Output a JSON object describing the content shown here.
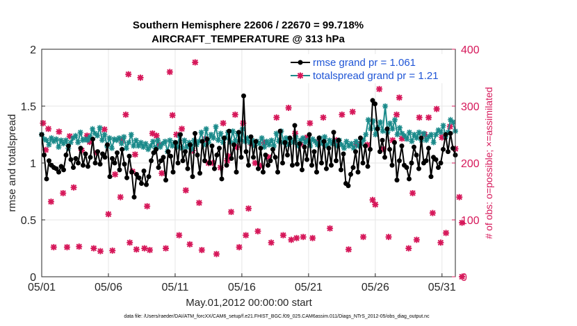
{
  "chart_data": {
    "type": "line",
    "title": "Southern Hemisphere 22606 / 22670 = 99.718%",
    "subtitle": "AIRCRAFT_TEMPERATURE @ 313 hPa",
    "xlabel": "May.01,2012 00:00:00 start",
    "ylabel": "rmse and totalspread",
    "y2label": "# of obs: o=possible; ×=assimilated",
    "footer": "data file: /Users/raeder/DAI/ATM_forcXX/CAM6_setup/f.e21.FHIST_BGC.f09_025.CAM6assim.011/Diags_NTrS_2012-05/obs_diag_output.nc",
    "x_ticks": [
      "05/01",
      "05/06",
      "05/11",
      "05/16",
      "05/21",
      "05/26",
      "05/31"
    ],
    "y_ticks": [
      "0",
      "0.5",
      "1",
      "1.5",
      "2"
    ],
    "y2_ticks": [
      "0",
      "100",
      "200",
      "300",
      "400"
    ],
    "ylim": [
      0,
      2
    ],
    "y2lim": [
      0,
      400
    ],
    "xlim_days": [
      0,
      31
    ],
    "legend_position": "top-right",
    "grid": true,
    "colors": {
      "rmse": "#000000",
      "spread": "#1a8a8a",
      "obs": "#d6185a",
      "legend_text": "#1f55d6"
    },
    "legend": [
      "rmse grand pr = 1.061",
      "totalspread grand pr = 1.21"
    ],
    "series": [
      {
        "name": "rmse",
        "values": [
          1.25,
          1.07,
          0.86,
          1.02,
          0.98,
          0.96,
          0.95,
          0.92,
          0.97,
          0.94,
          1.07,
          1.15,
          1.03,
          0.96,
          1.04,
          1.0,
          1.13,
          0.98,
          1.08,
          0.97,
          1.05,
          1.21,
          1.0,
          1.1,
          0.99,
          1.08,
          1.05,
          1.16,
          0.88,
          1.04,
          1.0,
          1.09,
          0.94,
          1.12,
          0.99,
          0.87,
          1.06,
          0.92,
          0.7,
          0.9,
          0.87,
          0.82,
          0.93,
          0.81,
          0.88,
          1.02,
          1.09,
          1.12,
          0.96,
          1.02,
          1.05,
          0.85,
          1.1,
          1.06,
          0.92,
          1.18,
          1.0,
          1.25,
          1.02,
          1.1,
          0.95,
          1.16,
          0.88,
          1.26,
          1.07,
          0.91,
          1.19,
          1.02,
          1.21,
          1.0,
          1.15,
          0.95,
          1.07,
          1.13,
          0.86,
          1.22,
          0.98,
          1.28,
          1.04,
          1.16,
          0.92,
          1.27,
          1.05,
          1.59,
          1.1,
          0.98,
          1.23,
          1.05,
          1.19,
          0.95,
          1.13,
          0.92,
          1.07,
          0.98,
          1.02,
          1.12,
          1.05,
          0.92,
          1.28,
          1.0,
          1.18,
          1.07,
          1.22,
          0.98,
          1.33,
          0.99,
          1.17,
          0.94,
          1.14,
          1.03,
          1.25,
          0.98,
          1.1,
          0.92,
          1.22,
          1.0,
          1.19,
          0.95,
          1.13,
          0.98,
          1.27,
          1.02,
          1.2,
          0.94,
          1.08,
          0.82,
          0.8,
          0.9,
          0.96,
          1.1,
          0.92,
          1.22,
          1.0,
          1.15,
          0.97,
          1.12,
          1.55,
          1.52,
          1.3,
          1.1,
          1.2,
          1.05,
          1.3,
          1.12,
          0.98,
          1.18,
          0.85,
          1.02,
          1.15,
          0.98,
          0.96,
          0.86,
          1.0,
          1.14,
          1.07,
          0.95,
          1.22,
          1.0,
          1.02,
          1.13,
          0.88,
          1.05,
          1.03,
          0.96,
          1.0,
          1.12,
          1.25,
          1.1,
          1.26,
          1.13,
          1.07
        ]
      },
      {
        "name": "totalspread",
        "values": [
          1.25,
          1.21,
          1.2,
          1.16,
          1.22,
          1.19,
          1.21,
          1.14,
          1.2,
          1.17,
          1.2,
          1.13,
          1.18,
          1.22,
          1.24,
          1.18,
          1.27,
          1.2,
          1.21,
          1.2,
          1.23,
          1.3,
          1.26,
          1.24,
          1.31,
          1.2,
          1.25,
          1.15,
          1.22,
          1.13,
          1.21,
          1.2,
          1.22,
          1.17,
          1.23,
          1.13,
          1.18,
          1.25,
          1.15,
          1.2,
          1.15,
          1.18,
          1.14,
          1.17,
          1.12,
          1.15,
          1.19,
          1.13,
          1.2,
          1.14,
          1.17,
          1.19,
          1.1,
          1.2,
          1.15,
          1.18,
          1.14,
          1.24,
          1.13,
          1.2,
          1.14,
          1.18,
          1.12,
          1.2,
          1.16,
          1.19,
          1.27,
          1.16,
          1.3,
          1.18,
          1.25,
          1.22,
          1.32,
          1.2,
          1.26,
          1.18,
          1.22,
          1.27,
          1.18,
          1.28,
          1.19,
          1.26,
          1.2,
          1.3,
          1.19,
          1.22,
          1.18,
          1.2,
          1.15,
          1.19,
          1.17,
          1.22,
          1.14,
          1.19,
          1.16,
          1.2,
          1.15,
          1.26,
          1.19,
          1.28,
          1.18,
          1.22,
          1.16,
          1.2,
          1.18,
          1.23,
          1.15,
          1.2,
          1.22,
          1.18,
          1.2,
          1.15,
          1.21,
          1.19,
          1.16,
          1.22,
          1.17,
          1.23,
          1.15,
          1.2,
          1.17,
          1.19,
          1.15,
          1.2,
          1.16,
          1.13,
          1.19,
          1.15,
          1.17,
          1.13,
          1.19,
          1.15,
          1.17,
          1.2,
          1.25,
          1.38,
          1.3,
          1.37,
          1.25,
          1.31,
          1.36,
          1.28,
          1.5,
          1.27,
          1.35,
          1.3,
          1.38,
          1.25,
          1.31,
          1.26,
          1.24,
          1.21,
          1.27,
          1.19,
          1.25,
          1.22,
          1.27,
          1.2,
          1.26,
          1.2,
          1.23,
          1.25,
          1.18,
          1.25,
          1.29,
          1.27,
          1.33,
          1.23,
          1.27,
          1.38,
          1.36,
          1.28
        ]
      },
      {
        "name": "obs_possible",
        "axis": "right",
        "points": [
          [
            0.1,
            270
          ],
          [
            0.3,
            223
          ],
          [
            0.5,
            260
          ],
          [
            0.7,
            132
          ],
          [
            0.9,
            52
          ],
          [
            1.3,
            255
          ],
          [
            1.6,
            147
          ],
          [
            1.9,
            52
          ],
          [
            2.1,
            247
          ],
          [
            2.4,
            157
          ],
          [
            2.8,
            53
          ],
          [
            3.0,
            222
          ],
          [
            3.4,
            248
          ],
          [
            3.6,
            237
          ],
          [
            3.9,
            50
          ],
          [
            4.1,
            218
          ],
          [
            4.4,
            45
          ],
          [
            4.7,
            259
          ],
          [
            5.0,
            110
          ],
          [
            5.3,
            46
          ],
          [
            5.5,
            180
          ],
          [
            5.9,
            140
          ],
          [
            6.0,
            240
          ],
          [
            6.3,
            285
          ],
          [
            6.5,
            356
          ],
          [
            6.6,
            60
          ],
          [
            6.8,
            185
          ],
          [
            7.0,
            215
          ],
          [
            7.1,
            48
          ],
          [
            7.4,
            350
          ],
          [
            7.7,
            50
          ],
          [
            7.9,
            124
          ],
          [
            8.1,
            47
          ],
          [
            8.3,
            252
          ],
          [
            8.6,
            248
          ],
          [
            8.8,
            232
          ],
          [
            9.0,
            182
          ],
          [
            9.3,
            50
          ],
          [
            9.6,
            360
          ],
          [
            9.8,
            284
          ],
          [
            10.1,
            250
          ],
          [
            10.3,
            73
          ],
          [
            10.5,
            260
          ],
          [
            10.8,
            152
          ],
          [
            11.1,
            57
          ],
          [
            11.3,
            222
          ],
          [
            11.5,
            377
          ],
          [
            11.8,
            130
          ],
          [
            12.0,
            47
          ],
          [
            12.3,
            242
          ],
          [
            12.5,
            200
          ],
          [
            12.8,
            200
          ],
          [
            13.1,
            40
          ],
          [
            13.4,
            192
          ],
          [
            13.6,
            270
          ],
          [
            13.9,
            204
          ],
          [
            14.0,
            212
          ],
          [
            14.2,
            114
          ],
          [
            14.5,
            285
          ],
          [
            14.6,
            228
          ],
          [
            14.8,
            52
          ],
          [
            15.1,
            270
          ],
          [
            15.3,
            73
          ],
          [
            15.5,
            120
          ],
          [
            15.7,
            235
          ],
          [
            16.0,
            200
          ],
          [
            16.2,
            80
          ],
          [
            16.4,
            195
          ],
          [
            16.7,
            236
          ],
          [
            17.0,
            210
          ],
          [
            17.2,
            60
          ],
          [
            17.6,
            280
          ],
          [
            18.1,
            73
          ],
          [
            18.5,
            297
          ],
          [
            18.7,
            65
          ],
          [
            19.0,
            252
          ],
          [
            19.1,
            68
          ],
          [
            19.4,
            233
          ],
          [
            19.6,
            70
          ],
          [
            19.9,
            245
          ],
          [
            20.1,
            270
          ],
          [
            20.3,
            68
          ],
          [
            20.7,
            237
          ],
          [
            21.1,
            280
          ],
          [
            21.6,
            85
          ],
          [
            22.1,
            240
          ],
          [
            22.5,
            285
          ],
          [
            23.0,
            48
          ],
          [
            23.3,
            290
          ],
          [
            23.6,
            233
          ],
          [
            24.1,
            70
          ],
          [
            24.4,
            232
          ],
          [
            24.8,
            135
          ],
          [
            25.0,
            127
          ],
          [
            25.3,
            330
          ],
          [
            25.6,
            225
          ],
          [
            26.0,
            70
          ],
          [
            26.3,
            240
          ],
          [
            26.6,
            285
          ],
          [
            26.8,
            315
          ],
          [
            27.0,
            243
          ],
          [
            27.5,
            50
          ],
          [
            27.8,
            147
          ],
          [
            28.1,
            65
          ],
          [
            28.3,
            280
          ],
          [
            28.7,
            250
          ],
          [
            29.0,
            280
          ],
          [
            29.3,
            112
          ],
          [
            29.6,
            295
          ],
          [
            29.9,
            60
          ],
          [
            30.0,
            245
          ],
          [
            30.3,
            77
          ],
          [
            30.6,
            264
          ],
          [
            31.0,
            225
          ],
          [
            31.3,
            140
          ],
          [
            31.5,
            95
          ],
          [
            31.5,
            0
          ]
        ]
      }
    ]
  }
}
